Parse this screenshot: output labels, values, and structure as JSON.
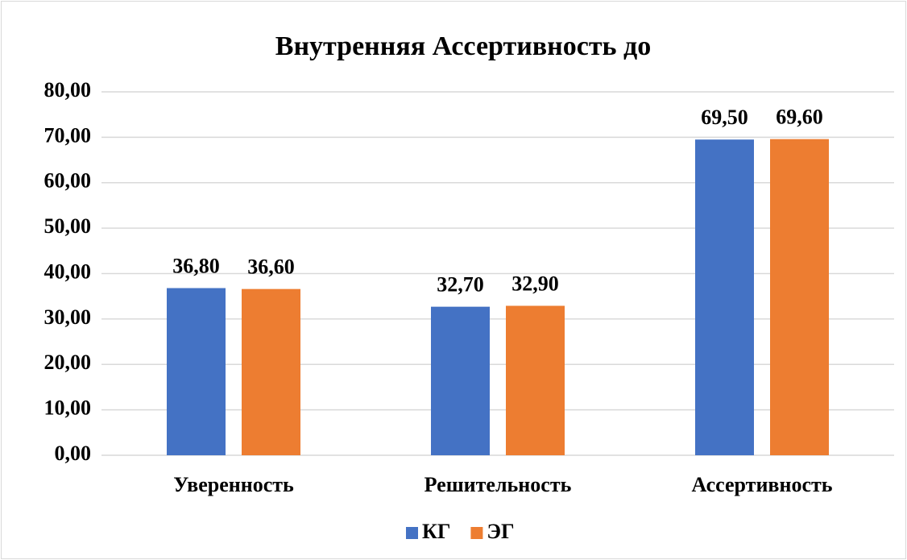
{
  "chart_data": {
    "type": "bar",
    "title": "Внутренняя Ассертивность до",
    "categories": [
      "Уверенность",
      "Решительность",
      "Ассертивность"
    ],
    "series": [
      {
        "name": "КГ",
        "color": "#4472c4",
        "values": [
          36.8,
          32.7,
          69.5
        ],
        "value_labels": [
          "36,80",
          "32,70",
          "69,50"
        ]
      },
      {
        "name": "ЭГ",
        "color": "#ed7d31",
        "values": [
          36.6,
          32.9,
          69.6
        ],
        "value_labels": [
          "36,60",
          "32,90",
          "69,60"
        ]
      }
    ],
    "ylim": [
      0,
      80
    ],
    "yticks": [
      {
        "value": 0,
        "label": "0,00"
      },
      {
        "value": 10,
        "label": "10,00"
      },
      {
        "value": 20,
        "label": "20,00"
      },
      {
        "value": 30,
        "label": "30,00"
      },
      {
        "value": 40,
        "label": "40,00"
      },
      {
        "value": 50,
        "label": "50,00"
      },
      {
        "value": 60,
        "label": "60,00"
      },
      {
        "value": 70,
        "label": "70,00"
      },
      {
        "value": 80,
        "label": "80,00"
      }
    ],
    "grid": true,
    "legend": "bottom"
  }
}
